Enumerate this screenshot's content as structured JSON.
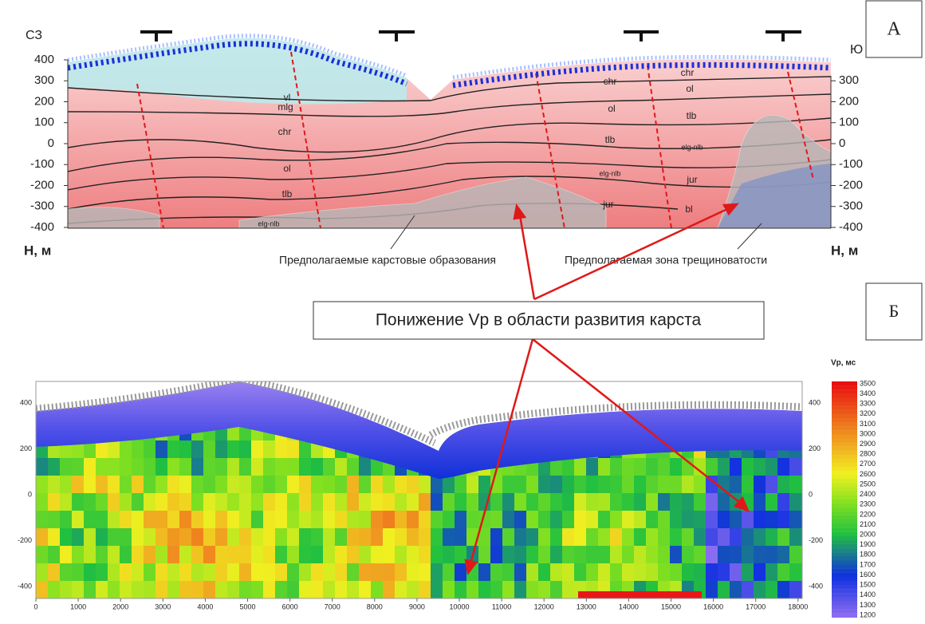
{
  "panel_a": {
    "label": "А",
    "dir_left": "СЗ",
    "dir_right": "Ю",
    "axis_left_title": "Н, м",
    "axis_right_title": "Н, м",
    "yticks_left": [
      400,
      300,
      200,
      100,
      0,
      -100,
      -200,
      -300,
      -400
    ],
    "yticks_right": [
      300,
      200,
      100,
      0,
      -100,
      -200,
      -300,
      -400
    ],
    "layers": [
      "vl",
      "mlg",
      "chr",
      "ol",
      "tlb",
      "elg-nlb",
      "chr",
      "ol",
      "tlb",
      "elg-nlb",
      "jur",
      "chr",
      "ol",
      "tlb",
      "elg-nlb",
      "jur",
      "bl"
    ],
    "captions": [
      "Предполагаемые карстовые образования",
      "Предполагаемая зона трещиноватости"
    ]
  },
  "callout": "Понижение Vp в области развития карста",
  "panel_b": {
    "label": "Б",
    "xticks": [
      0,
      1000,
      2000,
      3000,
      4000,
      5000,
      6000,
      7000,
      8000,
      9000,
      10000,
      11000,
      12000,
      13000,
      14000,
      15000,
      16000,
      17000,
      18000
    ],
    "yticks_left": [
      400,
      200,
      0,
      -200,
      -400
    ],
    "yticks_right": [
      400,
      200,
      0,
      -200,
      -400
    ],
    "colorbar_title": "Vp, мс",
    "colorbar_ticks": [
      3500,
      3400,
      3300,
      3200,
      3100,
      3000,
      2900,
      2800,
      2700,
      2600,
      2500,
      2400,
      2300,
      2200,
      2100,
      2000,
      1900,
      1800,
      1700,
      1600,
      1500,
      1400,
      1300,
      1200
    ]
  }
}
